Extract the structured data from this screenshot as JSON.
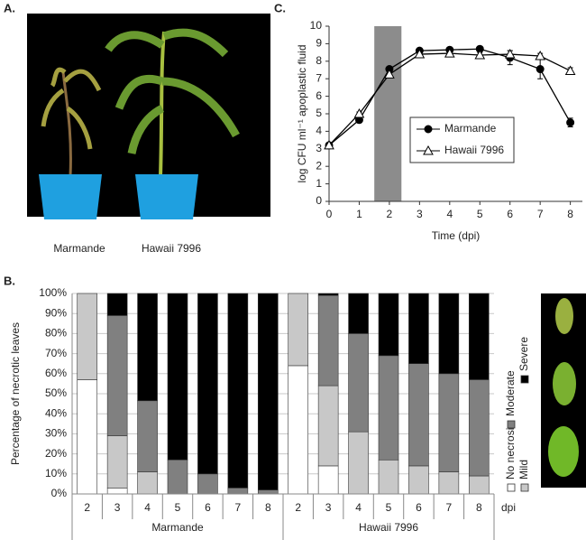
{
  "panel_a": {
    "label": "A.",
    "captions": [
      "Marmande",
      "Hawaii 7996"
    ]
  },
  "panel_b": {
    "label": "B."
  },
  "panel_c": {
    "label": "C."
  },
  "chart_data": [
    {
      "type": "stacked_bar",
      "y_label": "Percentage of necrotic leaves",
      "categories": [
        "2",
        "3",
        "4",
        "5",
        "6",
        "7",
        "8",
        "2",
        "3",
        "4",
        "5",
        "6",
        "7",
        "8"
      ],
      "groups": [
        "Marmande",
        "Hawaii 7996"
      ],
      "x_unit": "dpi",
      "series": [
        {
          "name": "No necrosis",
          "color": "#ffffff",
          "values": [
            57,
            3,
            0,
            0,
            0,
            0,
            0,
            64,
            14,
            0,
            0,
            0,
            0,
            0
          ]
        },
        {
          "name": "Mild",
          "color": "#c8c8c8",
          "values": [
            43,
            26,
            11,
            0,
            0,
            0,
            0,
            36,
            40,
            31,
            17,
            14,
            11,
            9
          ]
        },
        {
          "name": "Moderate",
          "color": "#808080",
          "values": [
            0,
            60,
            35.5,
            17,
            10,
            3,
            2,
            0,
            45,
            49,
            52,
            51,
            49,
            48
          ]
        },
        {
          "name": "Severe",
          "color": "#000000",
          "values": [
            0,
            11,
            53.5,
            83,
            90,
            97,
            98,
            0,
            1,
            20,
            31,
            35,
            40,
            43
          ]
        }
      ],
      "ylim": [
        0,
        100
      ],
      "yticks": [
        {
          "value": 0,
          "label": "0%"
        },
        {
          "value": 10,
          "label": "10%"
        },
        {
          "value": 20,
          "label": "20%"
        },
        {
          "value": 30,
          "label": "30%"
        },
        {
          "value": 40,
          "label": "40%"
        },
        {
          "value": 50,
          "label": "50%"
        },
        {
          "value": 60,
          "label": "60%"
        },
        {
          "value": 70,
          "label": "70%"
        },
        {
          "value": 80,
          "label": "80%"
        },
        {
          "value": 90,
          "label": "90%"
        },
        {
          "value": 100,
          "label": "100%"
        }
      ],
      "grid": true
    },
    {
      "type": "line",
      "x_label": "Time (dpi)",
      "y_label": "log CFU ml⁻¹ apoplastic fluid",
      "x": [
        0,
        1,
        2,
        3,
        4,
        5,
        6,
        7,
        8
      ],
      "highlight": [
        1.5,
        2.4
      ],
      "series": [
        {
          "name": "Marmande",
          "color": "#000000",
          "marker": "circle",
          "marker_fill": "#000000",
          "values": [
            3.2,
            4.65,
            7.55,
            8.6,
            8.65,
            8.7,
            8.2,
            7.55,
            4.5
          ],
          "errors": [
            0.08,
            0.1,
            0.12,
            0.1,
            0.1,
            0.1,
            0.4,
            0.55,
            0.25
          ]
        },
        {
          "name": "Hawaii 7996",
          "color": "#000000",
          "marker": "triangle",
          "marker_fill": "#ffffff",
          "values": [
            3.2,
            5.0,
            7.25,
            8.4,
            8.45,
            8.35,
            8.4,
            8.3,
            7.45
          ],
          "errors": [
            0.08,
            0.1,
            0.15,
            0.12,
            0.12,
            0.15,
            0.2,
            0.15,
            0.18
          ]
        }
      ],
      "xlim": [
        0,
        8.4
      ],
      "xticks": [
        0,
        1,
        2,
        3,
        4,
        5,
        6,
        7,
        8
      ],
      "ylim": [
        0,
        10
      ],
      "yticks": [
        0,
        1,
        2,
        3,
        4,
        5,
        6,
        7,
        8,
        9,
        10
      ],
      "grid": false
    }
  ]
}
